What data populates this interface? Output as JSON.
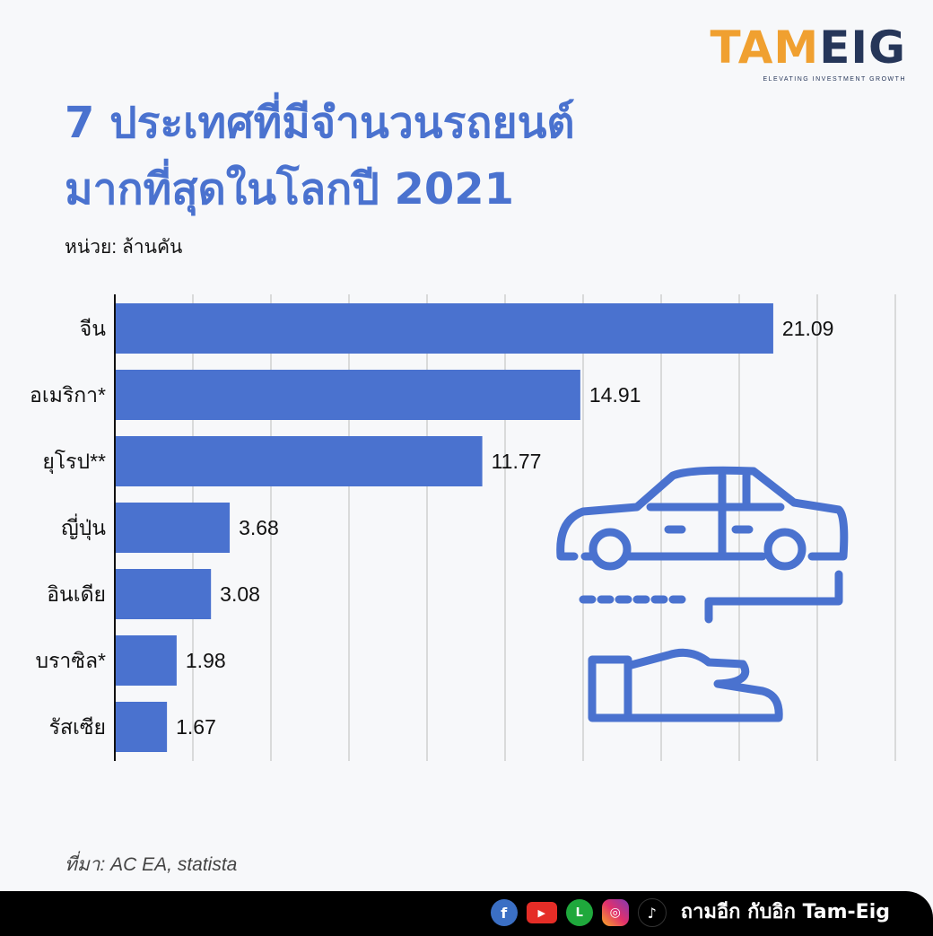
{
  "logo": {
    "part1": "TAM",
    "part2": "EIG",
    "tagline": "ELEVATING INVESTMENT GROWTH"
  },
  "title_line1": "7 ประเทศที่มีจำนวนรถยนต์",
  "title_line2": "มากที่สุดในโลกปี 2021",
  "unit": "หน่วย: ล้านคัน",
  "source": "ที่มา: AC EA, statista",
  "footer": {
    "handle": "ถามอีก กับอิก Tam-Eig",
    "icons": [
      "facebook-icon",
      "youtube-icon",
      "line-icon",
      "instagram-icon",
      "tiktok-icon"
    ]
  },
  "colors": {
    "bar": "#4a72cf",
    "title": "#4a72cf",
    "logo_orange": "#f0a030",
    "logo_navy": "#263659"
  },
  "chart_data": {
    "type": "bar",
    "orientation": "horizontal",
    "categories": [
      "จีน",
      "อเมริกา*",
      "ยุโรป**",
      "ญี่ปุ่น",
      "อินเดีย",
      "บราซิล*",
      "รัสเซีย"
    ],
    "values": [
      21.09,
      14.91,
      11.77,
      3.68,
      3.08,
      1.98,
      1.67
    ],
    "labels": [
      "21.09",
      "14.91",
      "11.77",
      "3.68",
      "3.08",
      "1.98",
      "1.67"
    ],
    "xlim": [
      0,
      25
    ],
    "grid": true,
    "grid_step": 2.5
  }
}
